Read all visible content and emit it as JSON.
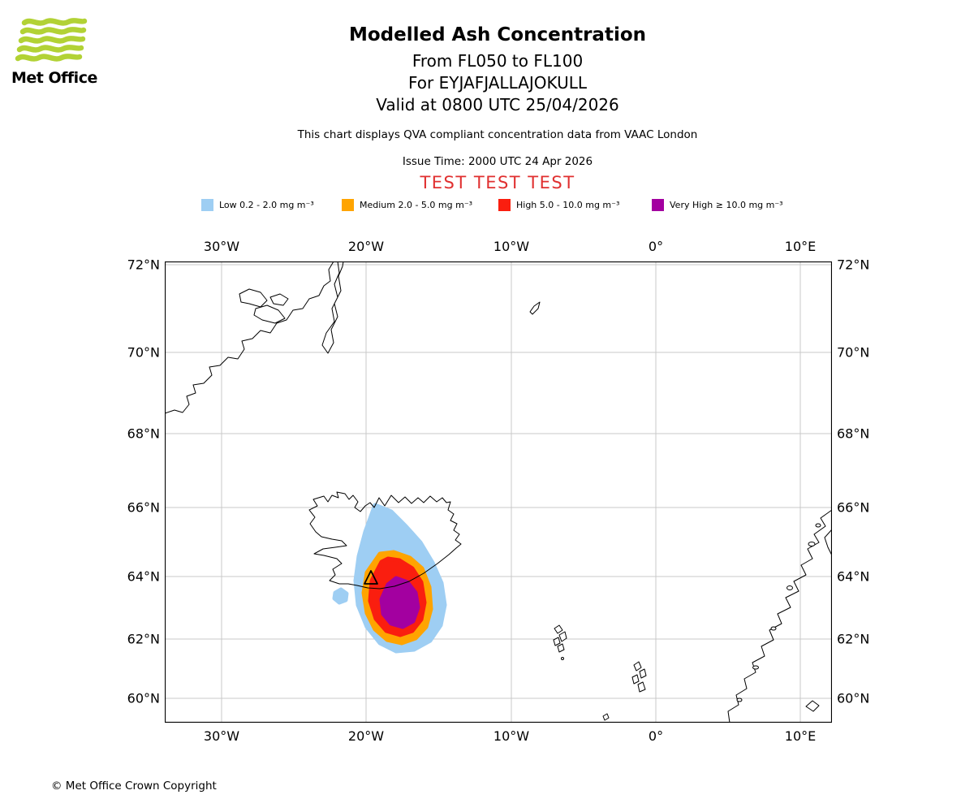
{
  "header": {
    "logo_text": "Met Office",
    "title": "Modelled Ash Concentration",
    "subtitle_flight_levels": "From FL050 to FL100",
    "subtitle_volcano": "For EYJAFJALLAJOKULL",
    "subtitle_valid": "Valid at 0800 UTC 25/04/2026",
    "description": "This chart displays QVA compliant concentration data from VAAC London",
    "issue_time": "Issue Time: 2000 UTC 24 Apr 2026",
    "test_banner": "TEST TEST TEST"
  },
  "legend": {
    "items": [
      {
        "name": "low",
        "label": "Low 0.2 - 2.0 mg m⁻³",
        "color": "#9ECEF3"
      },
      {
        "name": "medium",
        "label": "Medium 2.0 - 5.0 mg m⁻³",
        "color": "#FFA400"
      },
      {
        "name": "high",
        "label": "High 5.0 - 10.0 mg m⁻³",
        "color": "#FA1E0F"
      },
      {
        "name": "very-high",
        "label": "Very High ≥ 10.0 mg m⁻³",
        "color": "#A300A0"
      }
    ]
  },
  "map": {
    "lon_labels": [
      "30°W",
      "20°W",
      "10°W",
      "0°",
      "10°E"
    ],
    "lat_labels": [
      "72°N",
      "70°N",
      "68°N",
      "66°N",
      "64°N",
      "62°N",
      "60°N"
    ]
  },
  "footer": {
    "copyright": "© Met Office Crown Copyright"
  },
  "colors": {
    "test_banner": "#E03030",
    "logo_green": "#B2D235",
    "grid": "#C8C8C8"
  }
}
